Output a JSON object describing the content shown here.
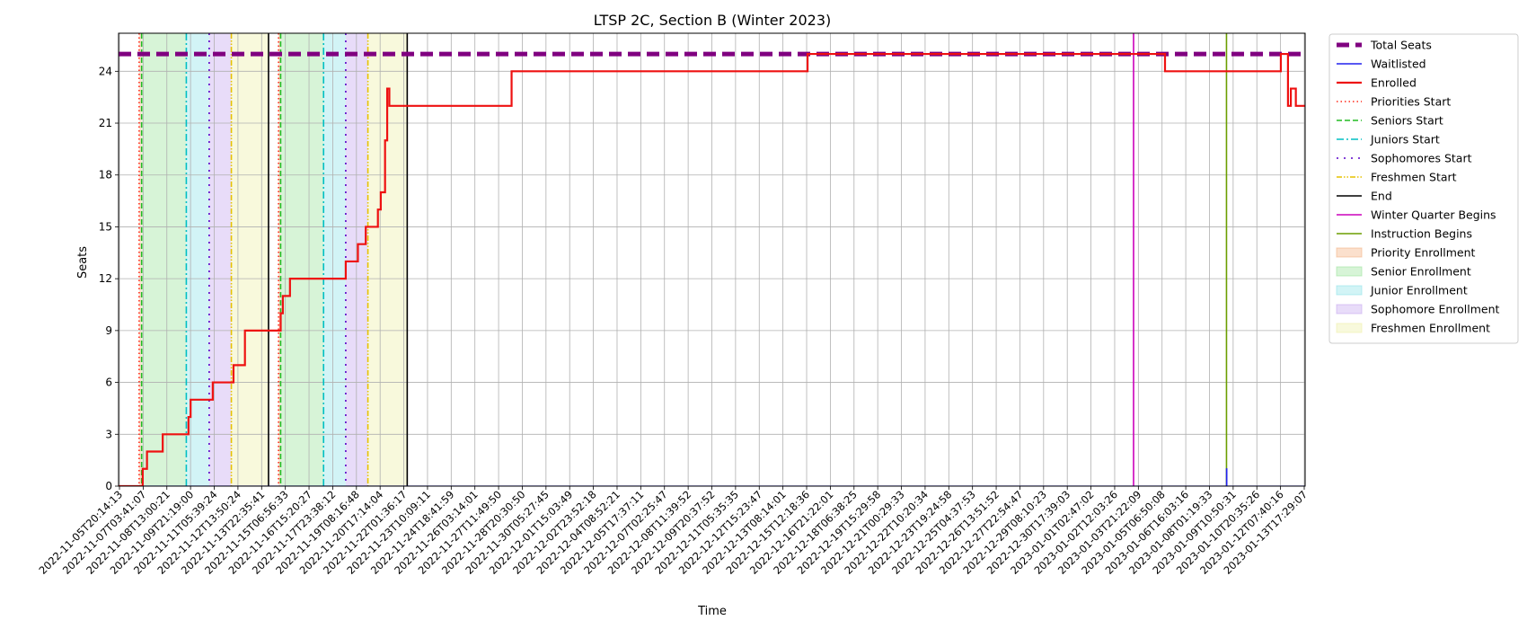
{
  "chart_data": {
    "type": "line",
    "title": "LTSP 2C, Section B (Winter 2023)",
    "xlabel": "Time",
    "ylabel": "Seats",
    "x_start": "2022-11-05T20:14:13",
    "x_end": "2023-01-14T00:00:00",
    "ylim": [
      0,
      26.2
    ],
    "yticks": [
      0,
      3,
      6,
      9,
      12,
      15,
      18,
      21,
      24
    ],
    "grid": true,
    "legend_position": "outside-right",
    "xtick_labels": [
      "2022-11-05T20:14:13",
      "2022-11-07T03:41:07",
      "2022-11-08T13:00:21",
      "2022-11-09T21:19:00",
      "2022-11-11T05:39:24",
      "2022-11-12T13:50:24",
      "2022-11-13T22:35:41",
      "2022-11-15T06:56:33",
      "2022-11-16T15:20:27",
      "2022-11-17T23:38:12",
      "2022-11-19T08:16:48",
      "2022-11-20T17:14:04",
      "2022-11-22T01:36:17",
      "2022-11-23T10:09:11",
      "2022-11-24T18:41:59",
      "2022-11-26T03:14:01",
      "2022-11-27T11:49:50",
      "2022-11-28T20:30:50",
      "2022-11-30T05:27:45",
      "2022-12-01T15:03:49",
      "2022-12-02T23:52:18",
      "2022-12-04T08:52:21",
      "2022-12-05T17:37:11",
      "2022-12-07T02:25:47",
      "2022-12-08T11:39:52",
      "2022-12-09T20:37:52",
      "2022-12-11T05:35:35",
      "2022-12-12T15:23:47",
      "2022-12-13T08:14:01",
      "2022-12-15T12:18:36",
      "2022-12-16T21:22:01",
      "2022-12-18T06:38:25",
      "2022-12-19T15:29:58",
      "2022-12-21T00:29:33",
      "2022-12-22T10:20:34",
      "2022-12-23T19:24:58",
      "2022-12-25T04:37:53",
      "2022-12-26T13:51:52",
      "2022-12-27T22:54:47",
      "2022-12-29T08:10:23",
      "2022-12-30T17:39:03",
      "2023-01-01T02:47:02",
      "2023-01-02T12:03:26",
      "2023-01-03T21:22:09",
      "2023-01-05T06:50:08",
      "2023-01-06T16:03:16",
      "2023-01-08T01:19:33",
      "2023-01-09T10:50:31",
      "2023-01-10T20:35:26",
      "2023-01-12T07:40:16",
      "2023-01-13T17:29:07"
    ],
    "total_seats": 25,
    "periods": [
      {
        "name": "Priority Enrollment",
        "color": "#f4b183",
        "spans": [
          [
            "2022-11-07T01:00",
            "2022-11-07T04:30"
          ],
          [
            "2022-11-15T04:00",
            "2022-11-15T06:56"
          ]
        ]
      },
      {
        "name": "Senior Enrollment",
        "color": "#9be39b",
        "spans": [
          [
            "2022-11-07T04:30",
            "2022-11-09T19:00"
          ],
          [
            "2022-11-15T06:56",
            "2022-11-17T19:00"
          ]
        ]
      },
      {
        "name": "Junior Enrollment",
        "color": "#8fe3e8",
        "spans": [
          [
            "2022-11-09T19:00",
            "2022-11-11T03:00"
          ],
          [
            "2022-11-17T19:00",
            "2022-11-19T02:00"
          ]
        ]
      },
      {
        "name": "Sophomore Enrollment",
        "color": "#c5a8ef",
        "spans": [
          [
            "2022-11-11T03:00",
            "2022-11-12T10:00"
          ],
          [
            "2022-11-19T02:00",
            "2022-11-20T09:00"
          ]
        ]
      },
      {
        "name": "Freshmen Enrollment",
        "color": "#eef0a8",
        "spans": [
          [
            "2022-11-12T10:00",
            "2022-11-14T14:00"
          ],
          [
            "2022-11-20T09:00",
            "2022-11-22T16:00"
          ]
        ]
      }
    ],
    "event_lines": [
      {
        "name": "Priorities Start",
        "color": "#ff2a1a",
        "style": "dotted",
        "x": [
          "2022-11-07T01:00",
          "2022-11-15T04:00"
        ]
      },
      {
        "name": "Seniors Start",
        "color": "#22bb22",
        "style": "dashed",
        "x": [
          "2022-11-07T04:30",
          "2022-11-15T06:56"
        ]
      },
      {
        "name": "Juniors Start",
        "color": "#00bfc4",
        "style": "dashdot",
        "x": [
          "2022-11-09T19:00",
          "2022-11-17T19:00"
        ]
      },
      {
        "name": "Sophomores Start",
        "color": "#5a00c8",
        "style": "loosedot",
        "x": [
          "2022-11-11T03:00",
          "2022-11-19T02:00"
        ]
      },
      {
        "name": "Freshmen Start",
        "color": "#e6c200",
        "style": "dashdotdot",
        "x": [
          "2022-11-12T10:00",
          "2022-11-20T09:00"
        ]
      },
      {
        "name": "End",
        "color": "#000000",
        "style": "solid",
        "x": [
          "2022-11-14T14:00",
          "2022-11-22T16:00"
        ]
      },
      {
        "name": "Winter Quarter Begins",
        "color": "#cc00bb",
        "style": "solid",
        "x": [
          "2023-01-04T00:00"
        ]
      },
      {
        "name": "Instruction Begins",
        "color": "#6b9e00",
        "style": "solid",
        "x": [
          "2023-01-09T10:00"
        ]
      }
    ],
    "series": [
      {
        "name": "Total Seats",
        "color": "#800080",
        "style": "thickdash",
        "points": [
          [
            "2022-11-05T20:14:13",
            25
          ],
          [
            "2023-01-14T00:00:00",
            25
          ]
        ]
      },
      {
        "name": "Waitlisted",
        "color": "#2222ee",
        "style": "solid",
        "points": [
          [
            "2022-11-05T20:14:13",
            0
          ],
          [
            "2023-01-09T10:00",
            0
          ],
          [
            "2023-01-09T10:00",
            1
          ],
          [
            "2023-01-09T10:30",
            1
          ],
          [
            "2023-01-09T10:30",
            0
          ],
          [
            "2023-01-14T00:00:00",
            0
          ]
        ]
      },
      {
        "name": "Enrolled",
        "color": "#ee1111",
        "style": "solid",
        "points": [
          [
            "2022-11-05T20:14:13",
            0
          ],
          [
            "2022-11-07T06:00",
            0
          ],
          [
            "2022-11-07T06:00",
            1
          ],
          [
            "2022-11-07T12:00",
            1
          ],
          [
            "2022-11-07T12:00",
            2
          ],
          [
            "2022-11-08T10:00",
            2
          ],
          [
            "2022-11-08T10:00",
            3
          ],
          [
            "2022-11-09T22:00",
            3
          ],
          [
            "2022-11-09T22:00",
            4
          ],
          [
            "2022-11-10T01:00",
            4
          ],
          [
            "2022-11-10T01:00",
            5
          ],
          [
            "2022-11-11T08:00",
            5
          ],
          [
            "2022-11-11T08:00",
            6
          ],
          [
            "2022-11-12T13:00",
            6
          ],
          [
            "2022-11-12T13:00",
            7
          ],
          [
            "2022-11-13T05:00",
            7
          ],
          [
            "2022-11-13T05:00",
            9
          ],
          [
            "2022-11-15T07:00",
            9
          ],
          [
            "2022-11-15T07:00",
            10
          ],
          [
            "2022-11-15T10:00",
            10
          ],
          [
            "2022-11-15T10:00",
            11
          ],
          [
            "2022-11-15T20:00",
            11
          ],
          [
            "2022-11-15T20:00",
            12
          ],
          [
            "2022-11-19T02:00",
            12
          ],
          [
            "2022-11-19T02:00",
            13
          ],
          [
            "2022-11-19T19:00",
            13
          ],
          [
            "2022-11-19T19:00",
            14
          ],
          [
            "2022-11-20T06:00",
            14
          ],
          [
            "2022-11-20T06:00",
            15
          ],
          [
            "2022-11-20T23:00",
            15
          ],
          [
            "2022-11-20T23:00",
            16
          ],
          [
            "2022-11-21T03:00",
            16
          ],
          [
            "2022-11-21T03:00",
            17
          ],
          [
            "2022-11-21T09:00",
            17
          ],
          [
            "2022-11-21T09:00",
            20
          ],
          [
            "2022-11-21T12:00",
            20
          ],
          [
            "2022-11-21T12:00",
            23
          ],
          [
            "2022-11-21T15:00",
            23
          ],
          [
            "2022-11-21T15:00",
            22
          ],
          [
            "2022-11-28T18:00",
            22
          ],
          [
            "2022-11-28T18:00",
            24
          ],
          [
            "2022-12-16T00:00",
            24
          ],
          [
            "2022-12-16T00:00",
            25
          ],
          [
            "2023-01-05T20:00",
            25
          ],
          [
            "2023-01-05T20:00",
            24
          ],
          [
            "2023-01-12T14:00",
            24
          ],
          [
            "2023-01-12T14:00",
            25
          ],
          [
            "2023-01-13T00:00",
            25
          ],
          [
            "2023-01-13T00:00",
            22
          ],
          [
            "2023-01-13T04:00",
            22
          ],
          [
            "2023-01-13T04:00",
            23
          ],
          [
            "2023-01-13T11:00",
            23
          ],
          [
            "2023-01-13T11:00",
            22
          ],
          [
            "2023-01-14T02:00",
            22
          ],
          [
            "2023-01-14T02:00",
            21
          ],
          [
            "2023-01-14T05:00",
            21
          ],
          [
            "2023-01-14T05:00",
            22
          ],
          [
            "2023-01-14T15:00",
            22
          ],
          [
            "2023-01-14T15:00",
            21
          ],
          [
            "2023-01-15T15:00",
            21
          ],
          [
            "2023-01-15T15:00",
            22
          ],
          [
            "2023-01-16T23:00",
            22
          ]
        ]
      }
    ],
    "legend": [
      {
        "label": "Total Seats",
        "kind": "line",
        "color": "#800080",
        "style": "thickdash"
      },
      {
        "label": "Waitlisted",
        "kind": "line",
        "color": "#2222ee",
        "style": "solid"
      },
      {
        "label": "Enrolled",
        "kind": "line",
        "color": "#ee1111",
        "style": "solid2"
      },
      {
        "label": "Priorities Start",
        "kind": "line",
        "color": "#ff2a1a",
        "style": "dotted"
      },
      {
        "label": "Seniors Start",
        "kind": "line",
        "color": "#22bb22",
        "style": "dashed"
      },
      {
        "label": "Juniors Start",
        "kind": "line",
        "color": "#00bfc4",
        "style": "dashdot"
      },
      {
        "label": "Sophomores Start",
        "kind": "line",
        "color": "#5a00c8",
        "style": "loosedot"
      },
      {
        "label": "Freshmen Start",
        "kind": "line",
        "color": "#e6c200",
        "style": "dashdotdot"
      },
      {
        "label": "End",
        "kind": "line",
        "color": "#000000",
        "style": "solid"
      },
      {
        "label": "Winter Quarter Begins",
        "kind": "line",
        "color": "#cc00bb",
        "style": "solid"
      },
      {
        "label": "Instruction Begins",
        "kind": "line",
        "color": "#6b9e00",
        "style": "solid"
      },
      {
        "label": "Priority Enrollment",
        "kind": "patch",
        "color": "#f4b183"
      },
      {
        "label": "Senior Enrollment",
        "kind": "patch",
        "color": "#9be39b"
      },
      {
        "label": "Junior Enrollment",
        "kind": "patch",
        "color": "#8fe3e8"
      },
      {
        "label": "Sophomore Enrollment",
        "kind": "patch",
        "color": "#c5a8ef"
      },
      {
        "label": "Freshmen Enrollment",
        "kind": "patch",
        "color": "#eef0a8"
      }
    ]
  }
}
